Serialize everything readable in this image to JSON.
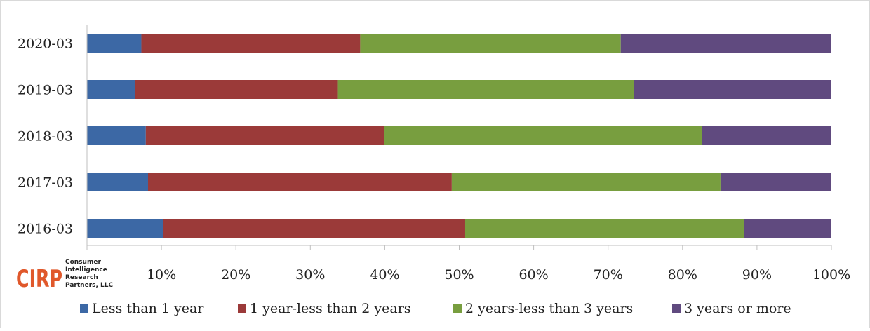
{
  "chart_data": {
    "type": "bar",
    "orientation": "horizontal",
    "stacked": "percent",
    "categories": [
      "2020-03",
      "2019-03",
      "2018-03",
      "2017-03",
      "2016-03"
    ],
    "series": [
      {
        "name": "Less than 1 year",
        "color": "#3c68a5",
        "values": [
          7.3,
          6.5,
          7.9,
          8.2,
          10.2
        ]
      },
      {
        "name": "1 year-less than 2 years",
        "color": "#9b3a39",
        "values": [
          29.4,
          27.2,
          32.0,
          40.8,
          40.6
        ]
      },
      {
        "name": "2 years-less than 3 years",
        "color": "#789e3f",
        "values": [
          35.0,
          39.8,
          42.7,
          36.1,
          37.5
        ]
      },
      {
        "name": "3 years or more",
        "color": "#604a7f",
        "values": [
          28.3,
          26.5,
          17.4,
          14.9,
          11.7
        ]
      }
    ],
    "xlim": [
      0,
      100
    ],
    "xticks": [
      "10%",
      "20%",
      "30%",
      "40%",
      "50%",
      "60%",
      "70%",
      "80%",
      "90%",
      "100%"
    ],
    "title": "",
    "xlabel": "",
    "ylabel": "",
    "grid": false,
    "legend_position": "bottom"
  },
  "logo": {
    "brand": "CIRP",
    "line1": "Consumer",
    "line2": "Intelligence",
    "line3": "Research",
    "line4": "Partners, LLC",
    "color": "#e0582b"
  }
}
